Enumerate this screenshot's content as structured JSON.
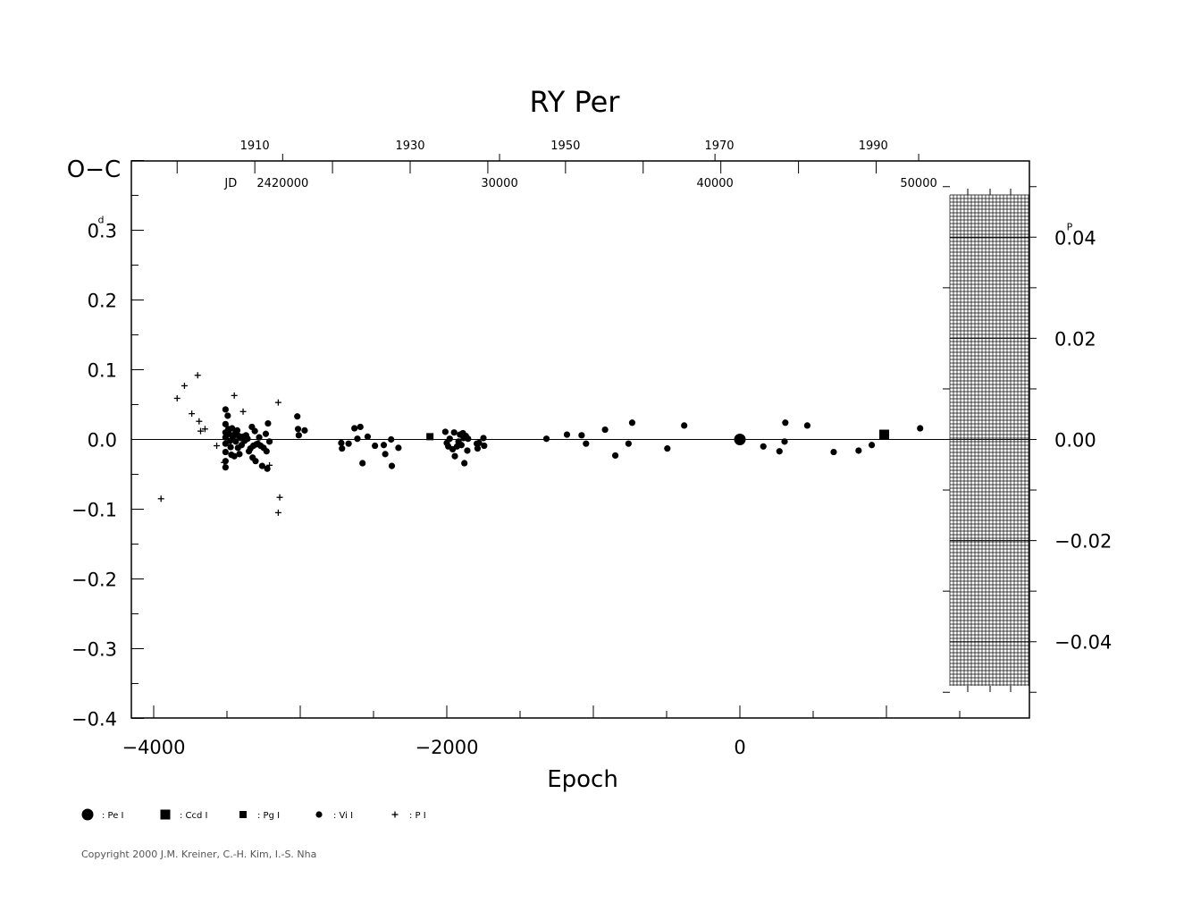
{
  "chart_data": {
    "type": "scatter",
    "title": "RY Per",
    "xlabel": "Epoch",
    "ylabel": "O−C",
    "y_unit_superscript": "d",
    "xlim": [
      -4100,
      2000
    ],
    "ylim": [
      -0.4,
      0.4
    ],
    "yticks": [
      0.3,
      0.2,
      0.1,
      0.0,
      -0.1,
      -0.2,
      -0.3,
      -0.4
    ],
    "ytick_labels": [
      "0.3",
      "0.2",
      "0.1",
      "0.0",
      "−0.1",
      "−0.2",
      "−0.3",
      "−0.4"
    ],
    "xticks": [
      -4000,
      -2000,
      0
    ],
    "xtick_labels": [
      "−4000",
      "−2000",
      "0"
    ],
    "top_year_ticks": [
      {
        "label": "1910",
        "epoch": -3310
      },
      {
        "label": "1930",
        "epoch": -2250
      },
      {
        "label": "1950",
        "epoch": -1190
      },
      {
        "label": "1970",
        "epoch": -140
      },
      {
        "label": "1990",
        "epoch": 910
      }
    ],
    "top_jd_prefix": "JD",
    "top_jd_ticks": [
      {
        "label": "2420000",
        "epoch": -3120
      },
      {
        "label": "30000",
        "epoch": -1640
      },
      {
        "label": "40000",
        "epoch": -170
      },
      {
        "label": "50000",
        "epoch": 1220
      }
    ],
    "right_axis": {
      "unit_superscript": "P",
      "ticks": [
        0.04,
        0.02,
        0.0,
        -0.02,
        -0.04
      ],
      "tick_labels": [
        "0.04",
        "0.02",
        "0.00",
        "−0.02",
        "−0.04"
      ],
      "scale_per_period": 7.25
    },
    "grid": false,
    "legend_position": "bottom-left",
    "series": [
      {
        "name": "Pe I",
        "marker": "big-circle",
        "points": [
          [
            0,
            0.0
          ]
        ]
      },
      {
        "name": "Ccd I",
        "marker": "big-square",
        "points": [
          [
            985,
            0.007
          ]
        ]
      },
      {
        "name": "Pg I",
        "marker": "small-square",
        "points": [
          [
            -2115,
            0.004
          ]
        ]
      },
      {
        "name": "Vi I",
        "marker": "dot",
        "points": [
          [
            -3510,
            0.043
          ],
          [
            -3510,
            0.022
          ],
          [
            -3510,
            0.01
          ],
          [
            -3510,
            0.003
          ],
          [
            -3510,
            -0.006
          ],
          [
            -3510,
            -0.018
          ],
          [
            -3510,
            -0.031
          ],
          [
            -3510,
            -0.04
          ],
          [
            -3495,
            0.034
          ],
          [
            -3490,
            0.015
          ],
          [
            -3485,
            0.008
          ],
          [
            -3480,
            -0.002
          ],
          [
            -3475,
            -0.011
          ],
          [
            -3470,
            -0.022
          ],
          [
            -3465,
            0.016
          ],
          [
            -3460,
            0.004
          ],
          [
            -3450,
            -0.024
          ],
          [
            -3445,
            0.008
          ],
          [
            -3440,
            -0.003
          ],
          [
            -3430,
            0.013
          ],
          [
            -3425,
            -0.012
          ],
          [
            -3420,
            0.005
          ],
          [
            -3415,
            -0.021
          ],
          [
            -3405,
            0.002
          ],
          [
            -3400,
            -0.008
          ],
          [
            -3390,
            0.004
          ],
          [
            -3380,
            -0.002
          ],
          [
            -3370,
            0.006
          ],
          [
            -3360,
            0.001
          ],
          [
            -3350,
            -0.017
          ],
          [
            -3340,
            -0.013
          ],
          [
            -3330,
            0.018
          ],
          [
            -3325,
            -0.026
          ],
          [
            -3320,
            -0.009
          ],
          [
            -3310,
            0.012
          ],
          [
            -3305,
            -0.031
          ],
          [
            -3300,
            -0.007
          ],
          [
            -3290,
            -0.006
          ],
          [
            -3280,
            0.003
          ],
          [
            -3270,
            -0.009
          ],
          [
            -3260,
            -0.038
          ],
          [
            -3250,
            -0.012
          ],
          [
            -3235,
            0.008
          ],
          [
            -3230,
            -0.017
          ],
          [
            -3225,
            -0.042
          ],
          [
            -3220,
            0.023
          ],
          [
            -3210,
            -0.003
          ],
          [
            -3020,
            0.033
          ],
          [
            -3015,
            0.015
          ],
          [
            -3010,
            0.006
          ],
          [
            -2970,
            0.013
          ],
          [
            -2720,
            -0.005
          ],
          [
            -2715,
            -0.013
          ],
          [
            -2670,
            -0.006
          ],
          [
            -2630,
            0.016
          ],
          [
            -2610,
            0.001
          ],
          [
            -2590,
            0.018
          ],
          [
            -2575,
            -0.034
          ],
          [
            -2540,
            0.004
          ],
          [
            -2490,
            -0.009
          ],
          [
            -2430,
            -0.008
          ],
          [
            -2420,
            -0.021
          ],
          [
            -2380,
            0.0
          ],
          [
            -2375,
            -0.038
          ],
          [
            -2330,
            -0.012
          ],
          [
            -2010,
            0.011
          ],
          [
            -2000,
            -0.005
          ],
          [
            -1990,
            -0.01
          ],
          [
            -1980,
            0.001
          ],
          [
            -1960,
            -0.014
          ],
          [
            -1950,
            0.01
          ],
          [
            -1945,
            -0.024
          ],
          [
            -1930,
            -0.01
          ],
          [
            -1920,
            -0.003
          ],
          [
            -1910,
            0.007
          ],
          [
            -1900,
            -0.008
          ],
          [
            -1890,
            0.009
          ],
          [
            -1885,
            0.002
          ],
          [
            -1880,
            -0.034
          ],
          [
            -1870,
            0.005
          ],
          [
            -1860,
            -0.016
          ],
          [
            -1855,
            0.001
          ],
          [
            -1795,
            -0.006
          ],
          [
            -1790,
            -0.013
          ],
          [
            -1780,
            -0.005
          ],
          [
            -1750,
            0.002
          ],
          [
            -1745,
            -0.009
          ],
          [
            -1320,
            0.001
          ],
          [
            -1180,
            0.007
          ],
          [
            -1080,
            0.006
          ],
          [
            -1050,
            -0.006
          ],
          [
            -920,
            0.014
          ],
          [
            -850,
            -0.023
          ],
          [
            -760,
            -0.006
          ],
          [
            -735,
            0.024
          ],
          [
            -495,
            -0.013
          ],
          [
            -380,
            0.02
          ],
          [
            160,
            -0.01
          ],
          [
            270,
            -0.017
          ],
          [
            305,
            -0.003
          ],
          [
            310,
            0.024
          ],
          [
            460,
            0.02
          ],
          [
            640,
            -0.018
          ],
          [
            810,
            -0.016
          ],
          [
            900,
            -0.008
          ],
          [
            1230,
            0.016
          ]
        ]
      },
      {
        "name": "P I",
        "marker": "plus",
        "points": [
          [
            -3950,
            -0.085
          ],
          [
            -3840,
            0.059
          ],
          [
            -3790,
            0.077
          ],
          [
            -3740,
            0.037
          ],
          [
            -3700,
            0.092
          ],
          [
            -3690,
            0.026
          ],
          [
            -3680,
            0.012
          ],
          [
            -3650,
            0.015
          ],
          [
            -3570,
            -0.009
          ],
          [
            -3520,
            -0.033
          ],
          [
            -3450,
            0.063
          ],
          [
            -3390,
            0.04
          ],
          [
            -3210,
            -0.037
          ],
          [
            -3150,
            0.053
          ],
          [
            -3140,
            -0.083
          ],
          [
            -3150,
            -0.105
          ]
        ]
      }
    ]
  },
  "legend": [
    {
      "marker": "big-circle",
      "label": ": Pe I"
    },
    {
      "marker": "big-square",
      "label": ": Ccd I"
    },
    {
      "marker": "small-square",
      "label": ": Pg I"
    },
    {
      "marker": "dot",
      "label": ": Vi I"
    },
    {
      "marker": "plus",
      "label": ": P I"
    }
  ],
  "copyright": "Copyright 2000 J.M. Kreiner, C.-H. Kim, I.-S. Nha"
}
